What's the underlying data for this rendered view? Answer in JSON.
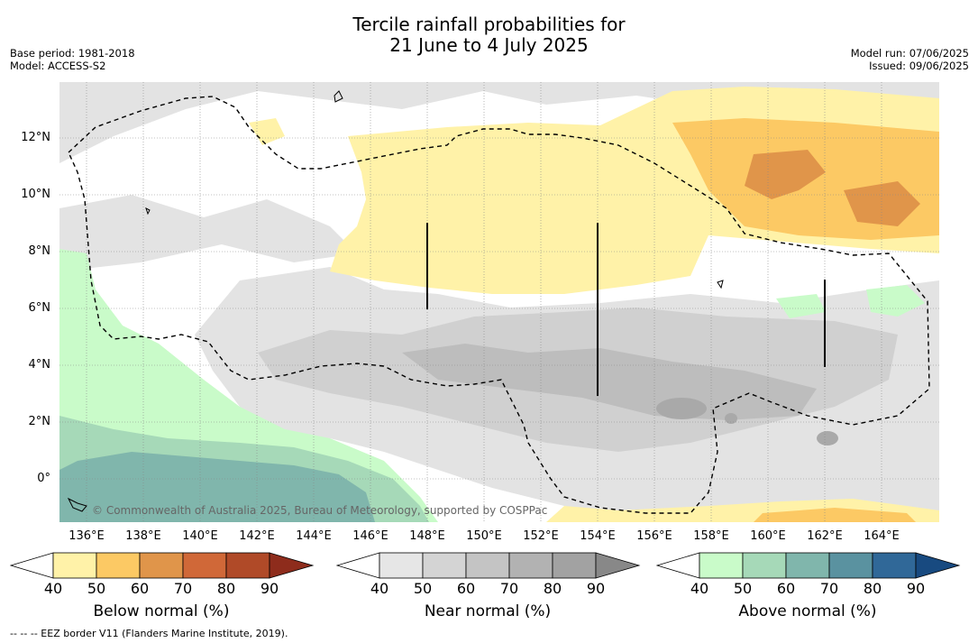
{
  "title_line1": "Tercile rainfall probabilities for",
  "title_line2": "21 June to 4 July 2025",
  "base_period": "Base period: 1981-2018",
  "model": "Model: ACCESS-S2",
  "model_run": "Model run: 07/06/2025",
  "issued": "Issued: 09/06/2025",
  "copyright": "© Commonwealth of Australia 2025, Bureau of Meteorology, supported by COSPPac",
  "footnote": "--  --  -- EEZ border V11 (Flanders Marine Institute, 2019).",
  "lat_labels": [
    "12°N",
    "10°N",
    "8°N",
    "6°N",
    "4°N",
    "2°N",
    "0°"
  ],
  "lon_labels": [
    "136°E",
    "138°E",
    "140°E",
    "142°E",
    "144°E",
    "146°E",
    "148°E",
    "150°E",
    "152°E",
    "154°E",
    "156°E",
    "158°E",
    "160°E",
    "162°E",
    "164°E"
  ],
  "colorbars": [
    {
      "name": "Below normal (%)",
      "ticks": [
        "40",
        "50",
        "60",
        "70",
        "80",
        "90"
      ],
      "colors": [
        "#fff2a8",
        "#fcc964",
        "#e0954a",
        "#d06838",
        "#b04a28",
        "#8e2c1c"
      ]
    },
    {
      "name": "Near normal (%)",
      "ticks": [
        "40",
        "50",
        "60",
        "70",
        "80",
        "90"
      ],
      "colors": [
        "#e6e6e6",
        "#d4d4d4",
        "#c4c4c4",
        "#b2b2b2",
        "#a2a2a2",
        "#888888"
      ]
    },
    {
      "name": "Above normal (%)",
      "ticks": [
        "40",
        "50",
        "60",
        "70",
        "80",
        "90"
      ],
      "colors": [
        "#c9fbc9",
        "#a6d9b8",
        "#80b6ac",
        "#5a92a0",
        "#306898",
        "#184a80"
      ]
    }
  ],
  "colors": {
    "near_light": "#e3e3e3",
    "near_mid": "#cfcfcf",
    "near_dark": "#bdbdbd",
    "near_darkest": "#a9a9a9"
  }
}
